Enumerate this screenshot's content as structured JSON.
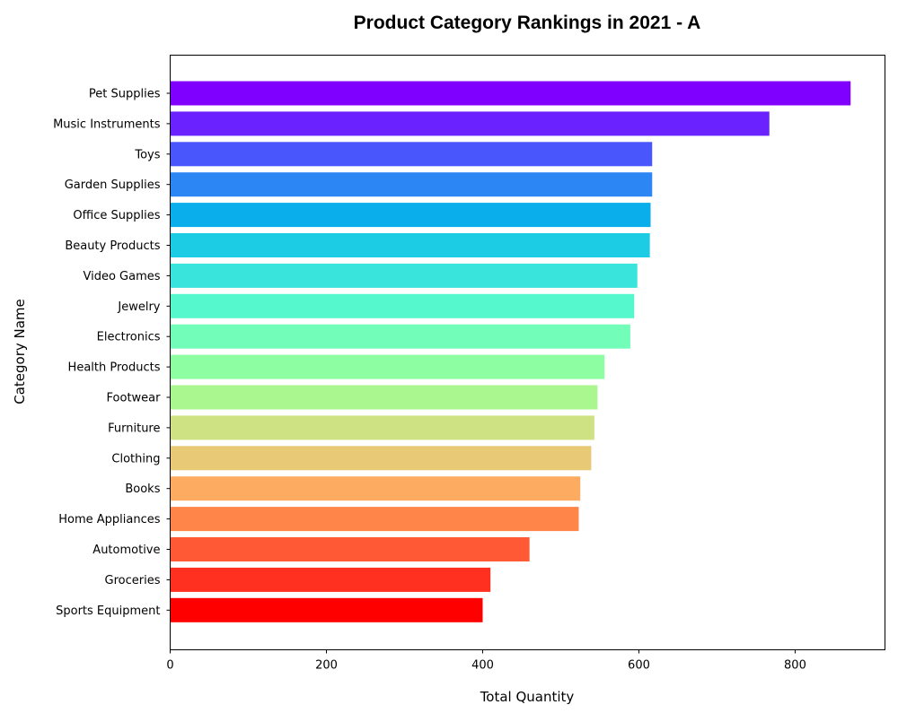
{
  "chart_data": {
    "type": "bar",
    "orientation": "horizontal",
    "title": "Product Category Rankings in 2021 - A",
    "xlabel": "Total Quantity",
    "ylabel": "Category Name",
    "xlim": [
      0,
      915
    ],
    "xticks": [
      0,
      200,
      400,
      600,
      800
    ],
    "grid": false,
    "legend": "none",
    "categories": [
      "Pet Supplies",
      "Music Instruments",
      "Toys",
      "Garden Supplies",
      "Office Supplies",
      "Beauty Products",
      "Video Games",
      "Jewelry",
      "Electronics",
      "Health Products",
      "Footwear",
      "Furniture",
      "Clothing",
      "Books",
      "Home Appliances",
      "Automotive",
      "Groceries",
      "Sports Equipment"
    ],
    "values": [
      871,
      767,
      617,
      617,
      615,
      614,
      598,
      594,
      589,
      556,
      547,
      543,
      539,
      525,
      523,
      460,
      410,
      400
    ],
    "colors": [
      "#8000ff",
      "#6a23fe",
      "#4856fb",
      "#2c87f4",
      "#0aaeea",
      "#1ccbe4",
      "#38e4db",
      "#55f7cc",
      "#72fdb8",
      "#8efea3",
      "#abf78f",
      "#cee283",
      "#e8c975",
      "#fcab60",
      "#ff8549",
      "#ff5a35",
      "#ff3020",
      "#ff0000"
    ]
  }
}
